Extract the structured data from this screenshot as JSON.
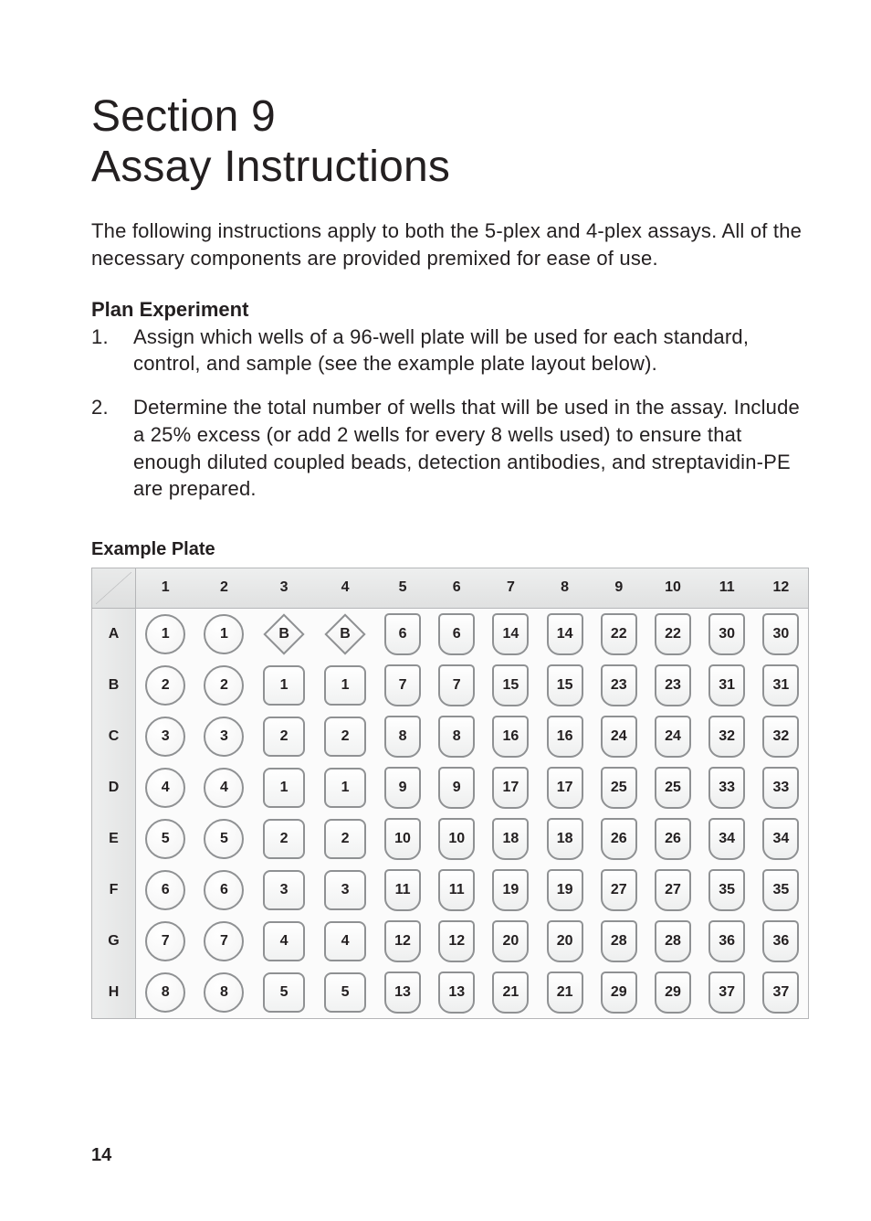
{
  "title_line1": "Section 9",
  "title_line2": "Assay Instructions",
  "intro": "The following instructions apply to both the 5-plex and 4-plex assays.  All of the necessary components are provided premixed for ease of use.",
  "subhead": "Plan Experiment",
  "steps": [
    "Assign which wells of a 96-well plate will be used for each standard, control, and sample (see the example plate layout below).",
    "Determine the total number of wells that will be used in the assay. Include a 25% excess (or add 2 wells for every 8 wells used) to ensure that enough diluted coupled beads, detection antibodies, and streptavidin-PE are prepared."
  ],
  "plate_label": "Example Plate",
  "plate": {
    "columns": [
      "1",
      "2",
      "3",
      "4",
      "5",
      "6",
      "7",
      "8",
      "9",
      "10",
      "11",
      "12"
    ],
    "rows": [
      "A",
      "B",
      "C",
      "D",
      "E",
      "F",
      "G",
      "H"
    ],
    "shapes": {
      "col_1_2": "circle",
      "rowA_col_3_4": "diamond",
      "col_3_4_rest": "rrect",
      "col_5_12": "tube"
    },
    "cells": [
      [
        "1",
        "1",
        "B",
        "B",
        "6",
        "6",
        "14",
        "14",
        "22",
        "22",
        "30",
        "30"
      ],
      [
        "2",
        "2",
        "1",
        "1",
        "7",
        "7",
        "15",
        "15",
        "23",
        "23",
        "31",
        "31"
      ],
      [
        "3",
        "3",
        "2",
        "2",
        "8",
        "8",
        "16",
        "16",
        "24",
        "24",
        "32",
        "32"
      ],
      [
        "4",
        "4",
        "1",
        "1",
        "9",
        "9",
        "17",
        "17",
        "25",
        "25",
        "33",
        "33"
      ],
      [
        "5",
        "5",
        "2",
        "2",
        "10",
        "10",
        "18",
        "18",
        "26",
        "26",
        "34",
        "34"
      ],
      [
        "6",
        "6",
        "3",
        "3",
        "11",
        "11",
        "19",
        "19",
        "27",
        "27",
        "35",
        "35"
      ],
      [
        "7",
        "7",
        "4",
        "4",
        "12",
        "12",
        "20",
        "20",
        "28",
        "28",
        "36",
        "36"
      ],
      [
        "8",
        "8",
        "5",
        "5",
        "13",
        "13",
        "21",
        "21",
        "29",
        "29",
        "37",
        "37"
      ]
    ],
    "header_bg": "#e6e7e7",
    "border_color": "#b5b6b8",
    "well_border": "#8f9193",
    "text_color": "#231f20"
  },
  "page_number": "14"
}
